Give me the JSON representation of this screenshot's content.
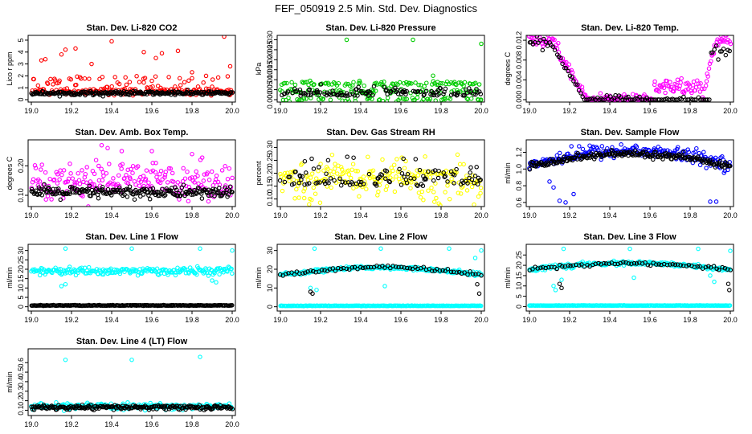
{
  "figure": {
    "title": "FEF_050919  2.5 Min. Std. Dev. Diagnostics"
  },
  "colors": {
    "black_series": "#000000",
    "red": "#ff0000",
    "green": "#00cc00",
    "magenta": "#ff00ff",
    "yellow": "#ffff00",
    "blue": "#0000ff",
    "cyan": "#00ffff"
  },
  "chart_data": [
    {
      "type": "scatter",
      "title": "Stan. Dev. Li-820 CO2",
      "ylabel": "Lico r ppm",
      "xlim": [
        19.0,
        20.0
      ],
      "ylim": [
        0,
        5.2
      ],
      "xticks": [
        19.0,
        19.2,
        19.4,
        19.6,
        19.8,
        20.0
      ],
      "yticks": [
        0,
        1,
        2,
        3,
        4,
        5
      ],
      "ytick_labels": [
        "0",
        "1",
        "2",
        "3",
        "4",
        "5"
      ],
      "series": [
        {
          "color": "#ff0000",
          "pattern": "noisy",
          "base": 0.7,
          "noise": 0.15,
          "spikes": [
            [
              19.05,
              3.3
            ],
            [
              19.07,
              3.4
            ],
            [
              19.15,
              3.8
            ],
            [
              19.17,
              4.2
            ],
            [
              19.22,
              4.3
            ],
            [
              19.3,
              3.0
            ],
            [
              19.4,
              4.9
            ],
            [
              19.56,
              4.0
            ],
            [
              19.62,
              3.5
            ],
            [
              19.65,
              3.9
            ],
            [
              19.73,
              4.1
            ],
            [
              19.8,
              2.3
            ],
            [
              19.87,
              2.0
            ],
            [
              19.96,
              5.3
            ],
            [
              19.99,
              2.8
            ]
          ],
          "spread": 1.3
        },
        {
          "color": "#000000",
          "pattern": "flat",
          "base": 0.55,
          "noise": 0.08
        }
      ]
    },
    {
      "type": "scatter",
      "title": "Stan. Dev. Li-820 Pressure",
      "ylabel": "kPa",
      "xlim": [
        19.0,
        20.0
      ],
      "ylim": [
        0,
        0.031
      ],
      "xticks": [
        19.0,
        19.2,
        19.4,
        19.6,
        19.8,
        20.0
      ],
      "yticks": [
        0.0,
        0.005,
        0.01,
        0.015,
        0.02,
        0.025,
        0.03
      ],
      "ytick_labels": [
        "0.000",
        "0.005",
        "0.010",
        "0.015",
        "0.020",
        "0.025",
        "0.030"
      ],
      "series": [
        {
          "color": "#00cc00",
          "pattern": "bands",
          "bands": [
            0.0,
            0.004,
            0.008
          ],
          "noise": 0.0006,
          "spikes": [
            [
              19.33,
              0.03
            ],
            [
              19.66,
              0.03
            ],
            [
              19.76,
              0.012
            ],
            [
              20.0,
              0.028
            ]
          ]
        },
        {
          "color": "#000000",
          "pattern": "sparse",
          "base": 0.002,
          "noise": 0.002
        }
      ]
    },
    {
      "type": "scatter",
      "title": "Stan. Dev. Li-820 Temp.",
      "ylabel": "degrees C",
      "xlim": [
        19.0,
        20.0
      ],
      "ylim": [
        0,
        0.0125
      ],
      "xticks": [
        19.0,
        19.2,
        19.4,
        19.6,
        19.8,
        20.0
      ],
      "yticks": [
        0.0,
        0.004,
        0.008,
        0.012
      ],
      "ytick_labels": [
        "0.000",
        "0.004",
        "0.008",
        "0.012"
      ],
      "series": [
        {
          "color": "#ff00ff",
          "pattern": "temp",
          "noise": 0.0006
        },
        {
          "color": "#000000",
          "pattern": "temp_black",
          "noise": 0.0005
        }
      ]
    },
    {
      "type": "scatter",
      "title": "Stan. Dev. Amb. Box Temp.",
      "ylabel": "degrees C",
      "xlim": [
        19.0,
        20.0
      ],
      "ylim": [
        0.07,
        0.28
      ],
      "xticks": [
        19.0,
        19.2,
        19.4,
        19.6,
        19.8,
        20.0
      ],
      "yticks": [
        0.1,
        0.2
      ],
      "ytick_labels": [
        "0.10",
        "0.20"
      ],
      "series": [
        {
          "color": "#ff00ff",
          "pattern": "noisy",
          "base": 0.15,
          "noise": 0.03,
          "spikes": [
            [
              19.35,
              0.27
            ],
            [
              19.38,
              0.26
            ],
            [
              19.45,
              0.25
            ],
            [
              19.6,
              0.25
            ],
            [
              19.8,
              0.24
            ]
          ],
          "spread": 0.0
        },
        {
          "color": "#000000",
          "pattern": "flat",
          "base": 0.11,
          "noise": 0.01
        }
      ]
    },
    {
      "type": "scatter",
      "title": "Stan. Dev. Gas Stream RH",
      "ylabel": "percent",
      "xlim": [
        19.0,
        20.0
      ],
      "ylim": [
        0.08,
        0.32
      ],
      "xticks": [
        19.0,
        19.2,
        19.4,
        19.6,
        19.8,
        20.0
      ],
      "yticks": [
        0.1,
        0.15,
        0.2,
        0.25,
        0.3
      ],
      "ytick_labels": [
        "0.10",
        "0.15",
        "0.20",
        "0.25",
        "0.30"
      ],
      "series": [
        {
          "color": "#ffff00",
          "pattern": "noisy",
          "base": 0.16,
          "noise": 0.05,
          "spikes": [],
          "spread": 0.05
        },
        {
          "color": "#000000",
          "pattern": "sparse",
          "base": 0.15,
          "noise": 0.04
        }
      ]
    },
    {
      "type": "scatter",
      "title": "Stan. Dev. Sample Flow",
      "ylabel": "ml/min",
      "xlim": [
        19.0,
        20.0
      ],
      "ylim": [
        0.58,
        1.32
      ],
      "xticks": [
        19.0,
        19.2,
        19.4,
        19.6,
        19.8,
        20.0
      ],
      "yticks": [
        0.6,
        0.8,
        1.0,
        1.2
      ],
      "ytick_labels": [
        "0.6",
        "0.8",
        "1.0",
        "1.2"
      ],
      "series": [
        {
          "color": "#0000ff",
          "pattern": "arch",
          "base": 1.05,
          "amp": 0.17,
          "noise": 0.04,
          "spikes": [
            [
              19.1,
              0.85
            ],
            [
              19.12,
              0.78
            ],
            [
              19.15,
              0.62
            ],
            [
              19.18,
              0.6
            ],
            [
              19.22,
              0.7
            ],
            [
              19.3,
              1.28
            ],
            [
              19.9,
              0.61
            ],
            [
              19.93,
              0.61
            ]
          ]
        },
        {
          "color": "#000000",
          "pattern": "arch",
          "base": 1.03,
          "amp": 0.15,
          "noise": 0.02,
          "spikes": []
        }
      ]
    },
    {
      "type": "scatter",
      "title": "Stan. Dev. Line 1 Flow",
      "ylabel": "ml/min",
      "xlim": [
        19.0,
        20.0
      ],
      "ylim": [
        -1,
        32
      ],
      "xticks": [
        19.0,
        19.2,
        19.4,
        19.6,
        19.8,
        20.0
      ],
      "yticks": [
        0,
        5,
        10,
        15,
        20,
        25,
        30
      ],
      "ytick_labels": [
        "0",
        "5",
        "10",
        "15",
        "20",
        "25",
        "30"
      ],
      "series": [
        {
          "color": "#00ffff",
          "pattern": "noisy",
          "base": 19,
          "noise": 1.0,
          "spikes": [
            [
              19.17,
              31
            ],
            [
              19.5,
              31
            ],
            [
              19.84,
              31
            ],
            [
              20.0,
              30
            ],
            [
              19.17,
              12
            ],
            [
              19.15,
              11
            ],
            [
              19.9,
              14
            ],
            [
              19.92,
              13
            ]
          ],
          "spread": 0
        },
        {
          "color": "#000000",
          "pattern": "flat",
          "base": 0.7,
          "noise": 0.1
        }
      ]
    },
    {
      "type": "scatter",
      "title": "Stan. Dev. Line 2 Flow",
      "ylabel": "ml/min",
      "xlim": [
        19.0,
        20.0
      ],
      "ylim": [
        -1,
        32
      ],
      "xticks": [
        19.0,
        19.2,
        19.4,
        19.6,
        19.8,
        20.0
      ],
      "yticks": [
        0,
        10,
        20,
        30
      ],
      "ytick_labels": [
        "0",
        "10",
        "20",
        "30"
      ],
      "series": [
        {
          "color": "#00ffff",
          "pattern": "flat",
          "base": 0.5,
          "noise": 0.05,
          "extra_arch": {
            "base": 17,
            "amp": 4
          },
          "spikes": [
            [
              19.17,
              31
            ],
            [
              19.5,
              31
            ],
            [
              19.84,
              31
            ],
            [
              20.0,
              30
            ],
            [
              19.15,
              10
            ],
            [
              19.18,
              9
            ],
            [
              19.52,
              11
            ],
            [
              19.97,
              26
            ]
          ]
        },
        {
          "color": "#000000",
          "pattern": "arch_sparse",
          "base": 17,
          "amp": 4,
          "noise": 0.4,
          "spikes": [
            [
              19.15,
              8
            ],
            [
              19.16,
              7
            ],
            [
              19.98,
              12
            ],
            [
              19.99,
              7
            ]
          ]
        }
      ]
    },
    {
      "type": "scatter",
      "title": "Stan. Dev. Line 3 Flow",
      "ylabel": "ml/min",
      "xlim": [
        19.0,
        20.0
      ],
      "ylim": [
        -1,
        29
      ],
      "xticks": [
        19.0,
        19.2,
        19.4,
        19.6,
        19.8,
        20.0
      ],
      "yticks": [
        0,
        5,
        10,
        15,
        20,
        25
      ],
      "ytick_labels": [
        "0",
        "5",
        "10",
        "15",
        "20",
        "25"
      ],
      "series": [
        {
          "color": "#00ffff",
          "pattern": "flat",
          "base": 0.5,
          "noise": 0.05,
          "extra_arch": {
            "base": 18,
            "amp": 3
          },
          "spikes": [
            [
              19.17,
              28
            ],
            [
              19.5,
              28
            ],
            [
              19.84,
              28
            ],
            [
              20.0,
              27
            ],
            [
              19.12,
              10
            ],
            [
              19.13,
              8
            ],
            [
              19.16,
              13
            ],
            [
              19.52,
              14
            ],
            [
              19.9,
              15
            ],
            [
              19.92,
              12
            ]
          ]
        },
        {
          "color": "#000000",
          "pattern": "arch_sparse",
          "base": 18,
          "amp": 3,
          "noise": 0.4,
          "spikes": [
            [
              19.15,
              11
            ],
            [
              19.16,
              9
            ],
            [
              19.99,
              11
            ],
            [
              19.995,
              8
            ]
          ]
        }
      ]
    },
    {
      "type": "scatter",
      "title": "Stan. Dev. Line 4 (LT) Flow",
      "ylabel": "ml/min",
      "xlim": [
        19.0,
        20.0
      ],
      "ylim": [
        0.07,
        0.72
      ],
      "xticks": [
        19.0,
        19.2,
        19.4,
        19.6,
        19.8,
        20.0
      ],
      "yticks": [
        0.1,
        0.2,
        0.3,
        0.4,
        0.5,
        0.6
      ],
      "ytick_labels": [
        "0.1",
        "0.2",
        "0.3",
        "0.4",
        "0.5",
        "0.6"
      ],
      "series": [
        {
          "color": "#00ffff",
          "pattern": "noisy",
          "base": 0.14,
          "noise": 0.015,
          "spikes": [
            [
              19.17,
              0.63
            ],
            [
              19.5,
              0.63
            ],
            [
              19.84,
              0.66
            ]
          ],
          "spread": 0
        },
        {
          "color": "#000000",
          "pattern": "flat",
          "base": 0.13,
          "noise": 0.012
        }
      ]
    }
  ]
}
